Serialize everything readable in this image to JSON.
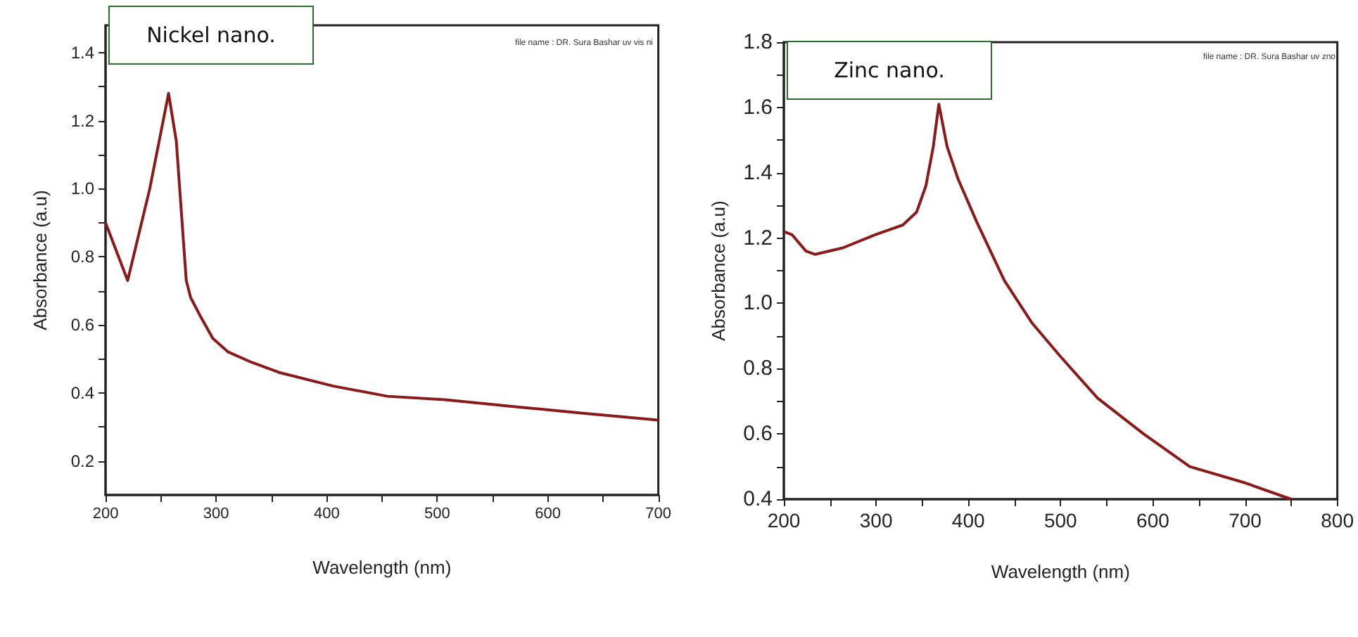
{
  "chart_data": [
    {
      "type": "line",
      "xlabel": "Wavelength (nm)",
      "ylabel": "Absorbance (a.u)",
      "annotations": [
        "Nickel nano.",
        "file name : DR. Sura Bashar uv vis ni"
      ],
      "xlim": [
        200,
        700
      ],
      "ylim": [
        0.1,
        1.48
      ],
      "xticks": [
        200,
        {
          "value": 250,
          "label": null
        },
        300,
        {
          "value": 350,
          "label": null
        },
        400,
        {
          "value": 450,
          "label": null
        },
        500,
        {
          "value": 550,
          "label": null
        },
        600,
        {
          "value": 650,
          "label": null
        },
        700
      ],
      "yticks": [
        {
          "value": 0.2,
          "label": "0.2"
        },
        {
          "value": 0.3,
          "label": null
        },
        {
          "value": 0.4,
          "label": "0.4"
        },
        {
          "value": 0.5,
          "label": null
        },
        {
          "value": 0.6,
          "label": "0.6"
        },
        {
          "value": 0.7,
          "label": null
        },
        {
          "value": 0.8,
          "label": "0.8"
        },
        {
          "value": 0.9,
          "label": null
        },
        {
          "value": 1.0,
          "label": "1.0"
        },
        {
          "value": 1.1,
          "label": null
        },
        {
          "value": 1.2,
          "label": "1.2"
        },
        {
          "value": 1.3,
          "label": null
        },
        {
          "value": 1.4,
          "label": "1.4"
        }
      ],
      "series": [
        {
          "color": "#8b1a1a",
          "x": [
            200,
            220,
            240,
            257,
            264,
            273,
            277,
            285,
            297,
            311,
            332,
            357,
            406,
            455,
            507,
            569,
            632,
            700
          ],
          "values": [
            0.9,
            0.73,
            1.0,
            1.28,
            1.14,
            0.73,
            0.68,
            0.63,
            0.56,
            0.52,
            0.49,
            0.46,
            0.42,
            0.39,
            0.38,
            0.36,
            0.34,
            0.32
          ]
        }
      ]
    },
    {
      "type": "line",
      "xlabel": "Wavelength (nm)",
      "ylabel": "Absorbance (a.u)",
      "annotations": [
        "Zinc nano.",
        "file name : DR. Sura Bashar uv zno"
      ],
      "xlim": [
        200,
        800
      ],
      "ylim": [
        0.4,
        1.8
      ],
      "xticks": [
        200,
        {
          "value": 250,
          "label": null
        },
        300,
        {
          "value": 350,
          "label": null
        },
        400,
        {
          "value": 450,
          "label": null
        },
        500,
        {
          "value": 550,
          "label": null
        },
        600,
        {
          "value": 650,
          "label": null
        },
        700,
        {
          "value": 750,
          "label": null
        },
        800
      ],
      "yticks": [
        {
          "value": 0.4,
          "label": "0.4"
        },
        {
          "value": 0.5,
          "label": null
        },
        {
          "value": 0.6,
          "label": "0.6"
        },
        {
          "value": 0.7,
          "label": null
        },
        {
          "value": 0.8,
          "label": "0.8"
        },
        {
          "value": 0.9,
          "label": null
        },
        {
          "value": 1.0,
          "label": "1.0"
        },
        {
          "value": 1.1,
          "label": null
        },
        {
          "value": 1.2,
          "label": "1.2"
        },
        {
          "value": 1.3,
          "label": null
        },
        {
          "value": 1.4,
          "label": "1.4"
        },
        {
          "value": 1.5,
          "label": null
        },
        {
          "value": 1.6,
          "label": "1.6"
        },
        {
          "value": 1.7,
          "label": null
        },
        {
          "value": 1.8,
          "label": "1.8"
        }
      ],
      "series": [
        {
          "color": "#8b1a1a",
          "x": [
            200,
            209,
            224,
            234,
            264,
            299,
            329,
            344,
            354,
            362,
            368,
            377,
            389,
            409,
            439,
            469,
            499,
            540,
            590,
            640,
            700,
            750
          ],
          "values": [
            1.22,
            1.21,
            1.16,
            1.15,
            1.17,
            1.21,
            1.24,
            1.28,
            1.36,
            1.48,
            1.61,
            1.48,
            1.38,
            1.25,
            1.07,
            0.94,
            0.84,
            0.71,
            0.6,
            0.5,
            0.45,
            0.4
          ]
        }
      ]
    }
  ]
}
